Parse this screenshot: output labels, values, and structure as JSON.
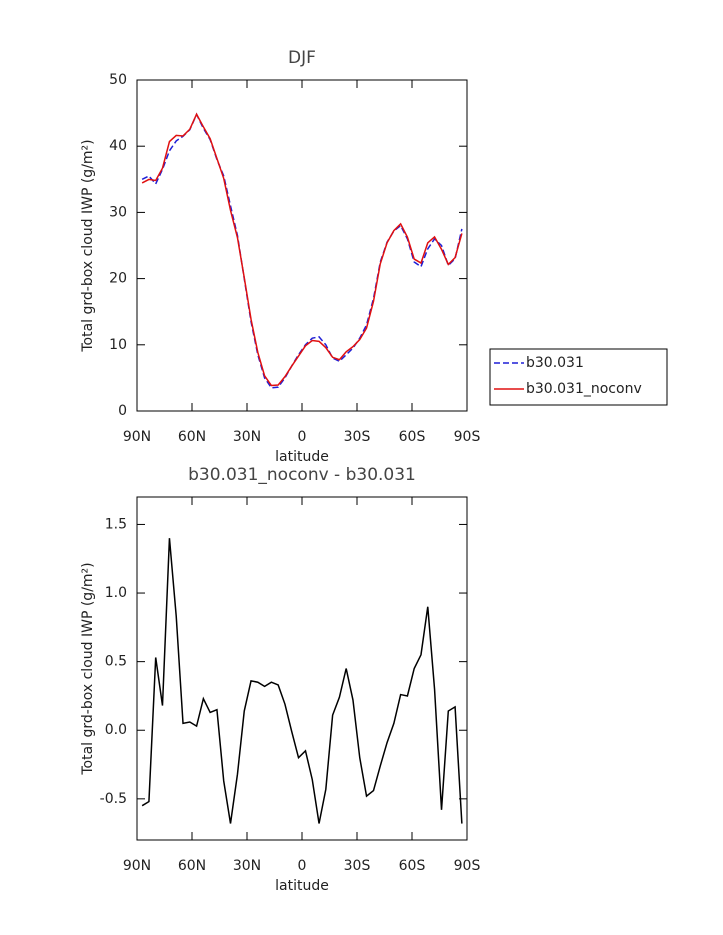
{
  "chart_data": [
    {
      "type": "line",
      "title": "DJF",
      "xlabel": "latitude",
      "ylabel": "Total grd-box cloud IWP (g/m²)",
      "x": [
        87.2,
        83.5,
        79.8,
        76.1,
        72.3,
        68.6,
        64.9,
        61.2,
        57.5,
        53.8,
        50.1,
        46.4,
        42.7,
        39.0,
        35.2,
        31.5,
        27.8,
        24.1,
        20.4,
        16.7,
        13.0,
        9.3,
        5.6,
        1.9,
        -1.9,
        -5.6,
        -9.3,
        -13.0,
        -16.7,
        -20.4,
        -24.1,
        -27.8,
        -31.5,
        -35.2,
        -39.0,
        -42.7,
        -46.4,
        -50.1,
        -53.8,
        -57.5,
        -61.2,
        -64.9,
        -68.6,
        -72.3,
        -76.1,
        -79.8,
        -83.5,
        -87.2
      ],
      "xlim": [
        90,
        -90
      ],
      "xticks": [
        {
          "value": 90,
          "label": "90N"
        },
        {
          "value": 60,
          "label": "60N"
        },
        {
          "value": 30,
          "label": "30N"
        },
        0,
        {
          "value": -30,
          "label": "30S"
        },
        {
          "value": -60,
          "label": "60S"
        },
        {
          "value": -90,
          "label": "90S"
        }
      ],
      "ylim": [
        0,
        50
      ],
      "yticks": [
        0,
        10,
        20,
        30,
        40,
        50
      ],
      "legend": "right",
      "series": [
        {
          "name": "b30.031",
          "color": "#1f1fd6",
          "linestyle": "dashed",
          "values": [
            35,
            35.5,
            34.3,
            36.5,
            39.3,
            40.8,
            41.5,
            42.5,
            44.8,
            42.7,
            41,
            38,
            35.5,
            31,
            26.5,
            20,
            13.5,
            8.5,
            5,
            3.5,
            3.6,
            5,
            6.8,
            8.5,
            10,
            11,
            11.2,
            10,
            8,
            7.5,
            8.5,
            9.5,
            11,
            13,
            17,
            22.5,
            25.5,
            27.2,
            28,
            26,
            22.5,
            21.8,
            24.5,
            26,
            25,
            22,
            23,
            27.5
          ]
        },
        {
          "name": "b30.031_noconv",
          "color": "#e01010",
          "linestyle": "solid",
          "values": [
            34.45,
            34.98,
            34.83,
            36.68,
            40.7,
            41.63,
            41.55,
            42.56,
            44.83,
            42.93,
            41.13,
            38.15,
            35.13,
            30.32,
            26.18,
            20.14,
            13.86,
            8.85,
            5.32,
            3.85,
            3.93,
            5.19,
            6.79,
            8.3,
            9.85,
            10.64,
            10.52,
            9.57,
            8.11,
            7.74,
            8.95,
            9.72,
            10.8,
            12.52,
            16.56,
            22.24,
            25.41,
            27.25,
            28.26,
            26.25,
            22.95,
            22.35,
            25.4,
            26.3,
            24.42,
            22.14,
            23.17,
            26.82
          ]
        }
      ]
    },
    {
      "type": "line",
      "title": "b30.031_noconv - b30.031",
      "xlabel": "latitude",
      "ylabel": "Total grd-box cloud IWP (g/m²)",
      "x": [
        87.2,
        83.5,
        79.8,
        76.1,
        72.3,
        68.6,
        64.9,
        61.2,
        57.5,
        53.8,
        50.1,
        46.4,
        42.7,
        39.0,
        35.2,
        31.5,
        27.8,
        24.1,
        20.4,
        16.7,
        13.0,
        9.3,
        5.6,
        1.9,
        -1.9,
        -5.6,
        -9.3,
        -13.0,
        -16.7,
        -20.4,
        -24.1,
        -27.8,
        -31.5,
        -35.2,
        -39.0,
        -42.7,
        -46.4,
        -50.1,
        -53.8,
        -57.5,
        -61.2,
        -64.9,
        -68.6,
        -72.3,
        -76.1,
        -79.8,
        -83.5,
        -87.2
      ],
      "xlim": [
        90,
        -90
      ],
      "xticks": [
        {
          "value": 90,
          "label": "90N"
        },
        {
          "value": 60,
          "label": "60N"
        },
        {
          "value": 30,
          "label": "30N"
        },
        0,
        {
          "value": -30,
          "label": "30S"
        },
        {
          "value": -60,
          "label": "60S"
        },
        {
          "value": -90,
          "label": "90S"
        }
      ],
      "ylim": [
        -0.8,
        1.7
      ],
      "yticks": [
        -0.5,
        {
          "value": 0,
          "label": "0.0"
        },
        0.5,
        {
          "value": 1,
          "label": "1.0"
        },
        1.5
      ],
      "color": "#000000",
      "values": [
        -0.55,
        -0.52,
        0.53,
        0.18,
        1.4,
        0.83,
        0.05,
        0.06,
        0.03,
        0.23,
        0.13,
        0.15,
        -0.37,
        -0.68,
        -0.32,
        0.14,
        0.36,
        0.35,
        0.32,
        0.35,
        0.33,
        0.19,
        -0.01,
        -0.2,
        -0.15,
        -0.36,
        -0.68,
        -0.43,
        0.11,
        0.24,
        0.45,
        0.22,
        -0.2,
        -0.48,
        -0.44,
        -0.26,
        -0.09,
        0.05,
        0.26,
        0.25,
        0.45,
        0.55,
        0.9,
        0.3,
        -0.58,
        0.14,
        0.17,
        -0.68
      ]
    }
  ]
}
